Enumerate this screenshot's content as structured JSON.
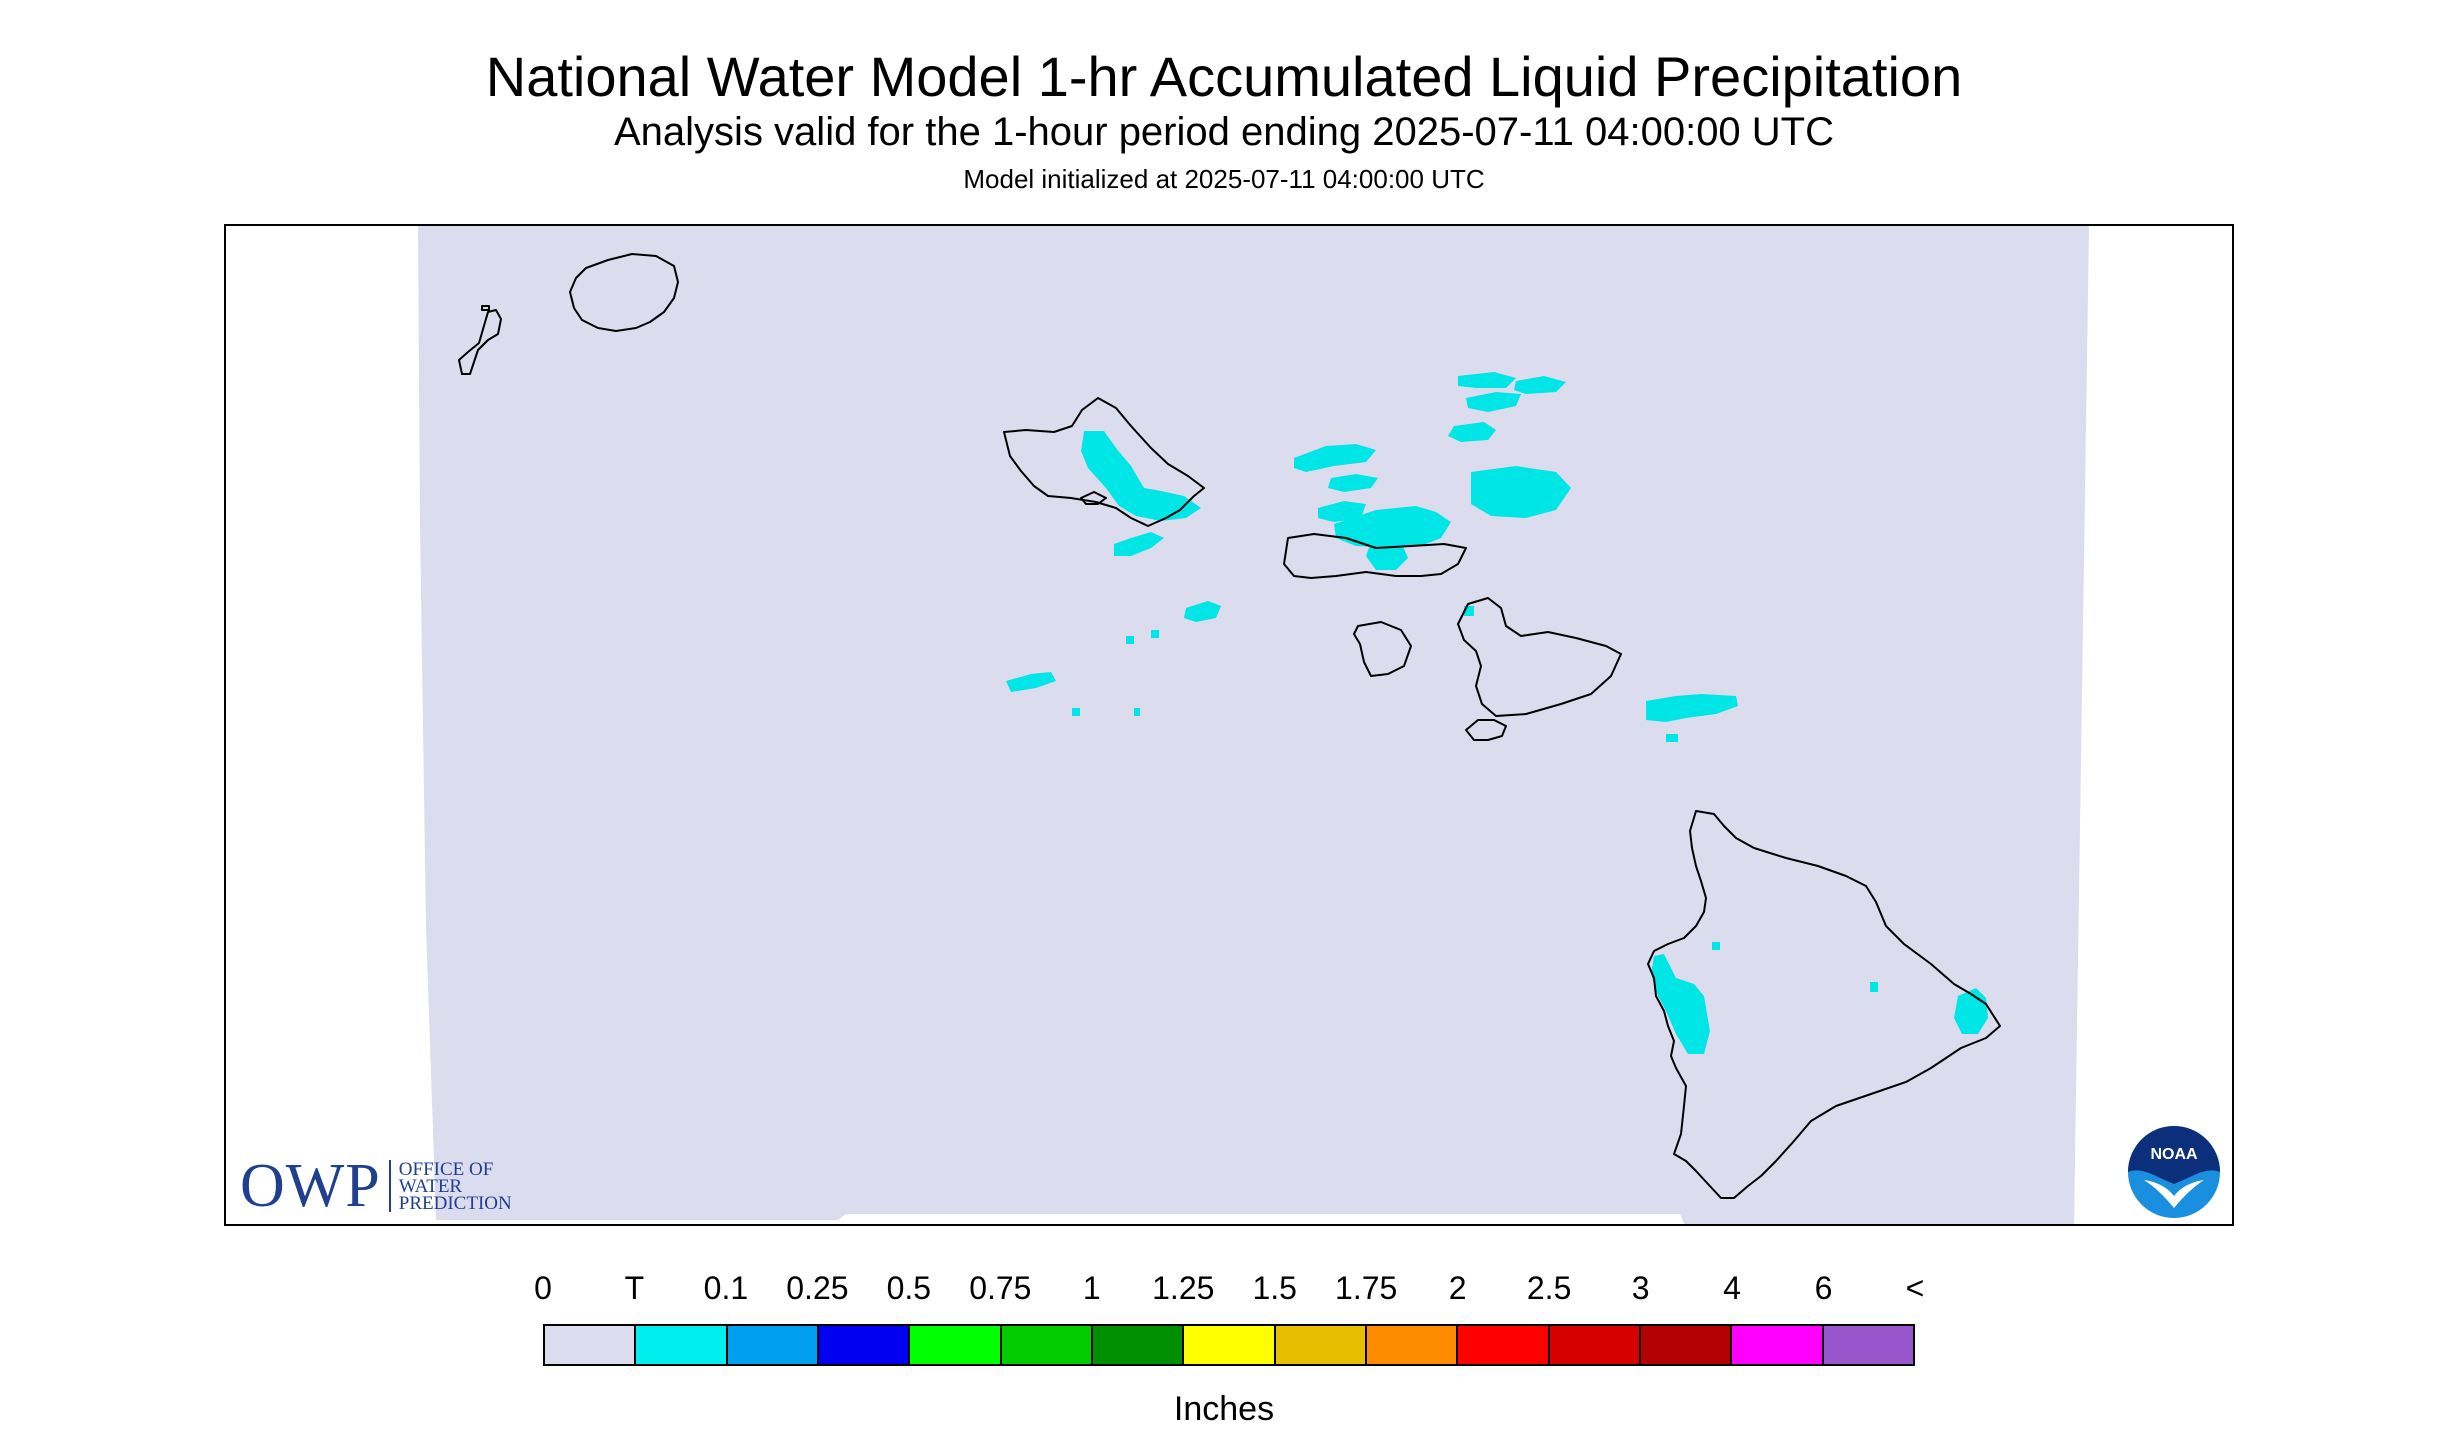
{
  "title": "National Water Model 1-hr Accumulated Liquid Precipitation",
  "subtitle": "Analysis valid for the 1-hour period ending 2025-07-11 04:00:00 UTC",
  "init_line": "Model initialized at 2025-07-11 04:00:00 UTC",
  "logos": {
    "owp_mark": "OWP",
    "owp_line1": "OFFICE OF",
    "owp_line2": "WATER",
    "owp_line3": "PREDICTION",
    "noaa_text": "NOAA"
  },
  "legend": {
    "labels": [
      "0",
      "T",
      "0.1",
      "0.25",
      "0.5",
      "0.75",
      "1",
      "1.25",
      "1.5",
      "1.75",
      "2",
      "2.5",
      "3",
      "4",
      "6",
      "<"
    ],
    "colors": [
      "#dcdcef",
      "#00eeee",
      "#009ff0",
      "#0000f0",
      "#00ff00",
      "#00cc00",
      "#008f00",
      "#ffff00",
      "#e6c000",
      "#ff8c00",
      "#ff0000",
      "#d60000",
      "#b30000",
      "#ff00ff",
      "#9955cc"
    ],
    "units": "Inches"
  },
  "map": {
    "background_color": "#dcdcef",
    "precip_color": "#00e5e5",
    "coast_color": "#000000",
    "islands": [
      "Niihau",
      "Kauai",
      "Oahu",
      "Molokai",
      "Lanai",
      "Maui",
      "Kahoolawe",
      "Hawaii"
    ]
  }
}
